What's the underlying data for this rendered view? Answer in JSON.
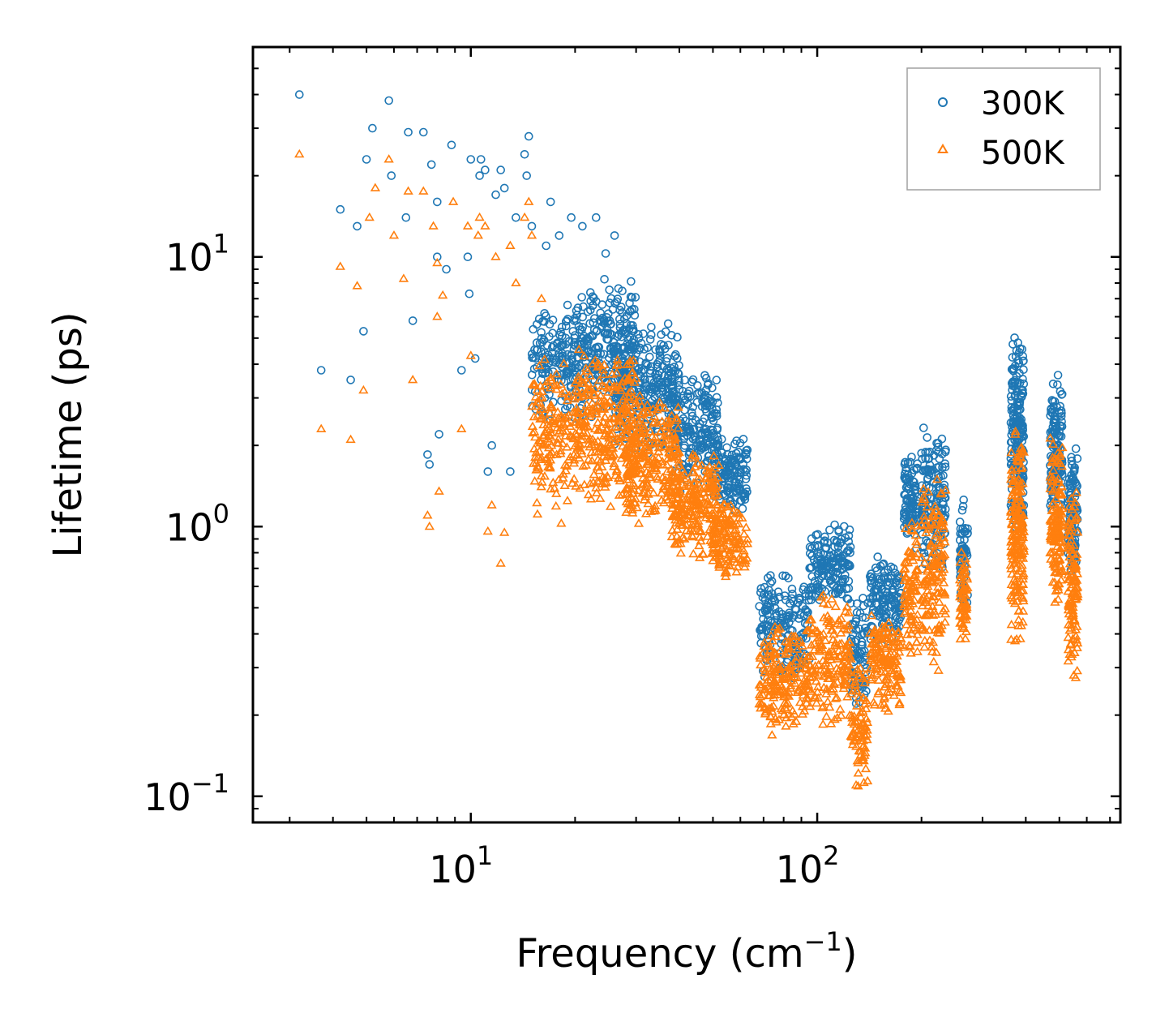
{
  "chart_data": {
    "type": "scatter",
    "xscale": "log",
    "yscale": "log",
    "xlabel": "Frequency (cm",
    "xlabel_superscript": "−1",
    "xlabel_suffix": ")",
    "ylabel": "Lifetime (ps)",
    "xlim": [
      2.35,
      750
    ],
    "ylim": [
      0.08,
      60
    ],
    "x_ticks": [
      {
        "value": 10,
        "base": "10",
        "exp": "1"
      },
      {
        "value": 100,
        "base": "10",
        "exp": "2"
      }
    ],
    "y_ticks": [
      {
        "value": 0.1,
        "base": "10",
        "exp": "−1"
      },
      {
        "value": 1,
        "base": "10",
        "exp": "0"
      },
      {
        "value": 10,
        "base": "10",
        "exp": "1"
      }
    ],
    "legend": {
      "location": "top-right",
      "entries": [
        "300K",
        "500K"
      ]
    },
    "series": [
      {
        "name": "300K",
        "marker": "circle",
        "color": "#1f77b4",
        "points": [
          [
            3.2,
            40
          ],
          [
            3.7,
            3.8
          ],
          [
            4.2,
            15
          ],
          [
            4.5,
            3.5
          ],
          [
            4.7,
            13
          ],
          [
            4.9,
            5.3
          ],
          [
            5.0,
            23
          ],
          [
            5.2,
            30
          ],
          [
            5.8,
            38
          ],
          [
            5.9,
            20
          ],
          [
            6.5,
            14
          ],
          [
            6.6,
            29
          ],
          [
            6.8,
            5.8
          ],
          [
            7.3,
            29
          ],
          [
            7.5,
            1.85
          ],
          [
            7.6,
            1.7
          ],
          [
            7.7,
            22
          ],
          [
            8.0,
            10
          ],
          [
            8.0,
            16
          ],
          [
            8.1,
            2.2
          ],
          [
            8.5,
            9
          ],
          [
            8.8,
            26
          ],
          [
            9.4,
            3.8
          ],
          [
            9.8,
            10
          ],
          [
            9.9,
            7.3
          ],
          [
            10.0,
            23
          ],
          [
            10.3,
            4.2
          ],
          [
            10.6,
            20
          ],
          [
            10.7,
            23
          ],
          [
            11.0,
            21
          ],
          [
            11.2,
            1.6
          ],
          [
            11.5,
            2.0
          ],
          [
            11.8,
            17
          ],
          [
            12.2,
            21
          ],
          [
            12.5,
            18
          ],
          [
            13.0,
            1.6
          ],
          [
            13.5,
            14
          ],
          [
            14.3,
            24
          ],
          [
            14.5,
            20
          ],
          [
            14.7,
            28
          ],
          [
            15.0,
            13
          ],
          [
            16.5,
            11
          ],
          [
            17.0,
            16
          ],
          [
            18.0,
            12
          ],
          [
            19.5,
            14
          ],
          [
            21.0,
            13
          ],
          [
            23.0,
            14
          ],
          [
            24.5,
            10.3
          ],
          [
            26.0,
            12
          ]
        ],
        "bands": [
          {
            "x": [
              15,
              20
            ],
            "y": [
              2.3,
              7.5
            ],
            "n": 140
          },
          {
            "x": [
              20,
              30
            ],
            "y": [
              2.4,
              8.5
            ],
            "n": 260
          },
          {
            "x": [
              26,
              40
            ],
            "y": [
              1.8,
              6.0
            ],
            "n": 280
          },
          {
            "x": [
              38,
              52
            ],
            "y": [
              1.3,
              3.8
            ],
            "n": 200
          },
          {
            "x": [
              50,
              63
            ],
            "y": [
              1.1,
              2.2
            ],
            "n": 140
          },
          {
            "x": [
              68,
              95
            ],
            "y": [
              0.26,
              0.7
            ],
            "n": 180
          },
          {
            "x": [
              95,
              125
            ],
            "y": [
              0.5,
              1.05
            ],
            "n": 160
          },
          {
            "x": [
              125,
              140
            ],
            "y": [
              0.2,
              0.6
            ],
            "n": 80
          },
          {
            "x": [
              142,
              175
            ],
            "y": [
              0.35,
              0.82
            ],
            "n": 140
          },
          {
            "x": [
              178,
              195
            ],
            "y": [
              0.8,
              1.9
            ],
            "n": 90
          },
          {
            "x": [
              200,
              235
            ],
            "y": [
              0.6,
              2.5
            ],
            "n": 150
          },
          {
            "x": [
              258,
              272
            ],
            "y": [
              0.45,
              1.4
            ],
            "n": 60
          },
          {
            "x": [
              362,
              395
            ],
            "y": [
              0.9,
              5.2
            ],
            "n": 190
          },
          {
            "x": [
              470,
              510
            ],
            "y": [
              1.0,
              3.8
            ],
            "n": 140
          },
          {
            "x": [
              530,
              565
            ],
            "y": [
              0.6,
              2.0
            ],
            "n": 110
          }
        ]
      },
      {
        "name": "500K",
        "marker": "triangle",
        "color": "#ff7f0e",
        "points": [
          [
            3.2,
            24
          ],
          [
            3.7,
            2.3
          ],
          [
            4.2,
            9.2
          ],
          [
            4.5,
            2.1
          ],
          [
            4.7,
            7.8
          ],
          [
            4.9,
            3.2
          ],
          [
            5.1,
            14
          ],
          [
            5.3,
            18
          ],
          [
            5.8,
            23
          ],
          [
            6.0,
            12
          ],
          [
            6.4,
            8.3
          ],
          [
            6.6,
            17.5
          ],
          [
            6.8,
            3.5
          ],
          [
            7.3,
            17.5
          ],
          [
            7.5,
            1.1
          ],
          [
            7.6,
            1.0
          ],
          [
            7.8,
            13
          ],
          [
            8.0,
            6.0
          ],
          [
            8.0,
            9.5
          ],
          [
            8.1,
            1.35
          ],
          [
            8.3,
            7.2
          ],
          [
            8.9,
            16
          ],
          [
            9.4,
            2.3
          ],
          [
            9.8,
            13
          ],
          [
            10.0,
            4.3
          ],
          [
            10.5,
            12
          ],
          [
            10.6,
            14
          ],
          [
            11.0,
            13
          ],
          [
            11.2,
            0.96
          ],
          [
            11.5,
            1.2
          ],
          [
            11.8,
            10
          ],
          [
            12.2,
            0.73
          ],
          [
            12.5,
            0.95
          ],
          [
            13.0,
            11
          ],
          [
            13.5,
            8
          ],
          [
            14.3,
            14
          ],
          [
            14.7,
            16
          ],
          [
            15.0,
            12
          ],
          [
            16.0,
            7
          ]
        ],
        "bands": [
          {
            "x": [
              15,
              20
            ],
            "y": [
              1.0,
              4.5
            ],
            "n": 160
          },
          {
            "x": [
              20,
              30
            ],
            "y": [
              1.15,
              4.6
            ],
            "n": 300
          },
          {
            "x": [
              28,
              40
            ],
            "y": [
              0.95,
              3.2
            ],
            "n": 260
          },
          {
            "x": [
              38,
              52
            ],
            "y": [
              0.72,
              2.0
            ],
            "n": 220
          },
          {
            "x": [
              50,
              63
            ],
            "y": [
              0.62,
              1.3
            ],
            "n": 140
          },
          {
            "x": [
              68,
              95
            ],
            "y": [
              0.16,
              0.45
            ],
            "n": 200
          },
          {
            "x": [
              95,
              125
            ],
            "y": [
              0.17,
              0.62
            ],
            "n": 170
          },
          {
            "x": [
              125,
              140
            ],
            "y": [
              0.105,
              0.35
            ],
            "n": 90
          },
          {
            "x": [
              142,
              175
            ],
            "y": [
              0.2,
              0.5
            ],
            "n": 140
          },
          {
            "x": [
              178,
              195
            ],
            "y": [
              0.32,
              1.1
            ],
            "n": 90
          },
          {
            "x": [
              200,
              235
            ],
            "y": [
              0.28,
              1.55
            ],
            "n": 150
          },
          {
            "x": [
              258,
              272
            ],
            "y": [
              0.33,
              0.85
            ],
            "n": 60
          },
          {
            "x": [
              362,
              395
            ],
            "y": [
              0.35,
              2.5
            ],
            "n": 180
          },
          {
            "x": [
              470,
              510
            ],
            "y": [
              0.5,
              2.3
            ],
            "n": 140
          },
          {
            "x": [
              530,
              565
            ],
            "y": [
              0.24,
              1.4
            ],
            "n": 120
          }
        ]
      }
    ]
  }
}
